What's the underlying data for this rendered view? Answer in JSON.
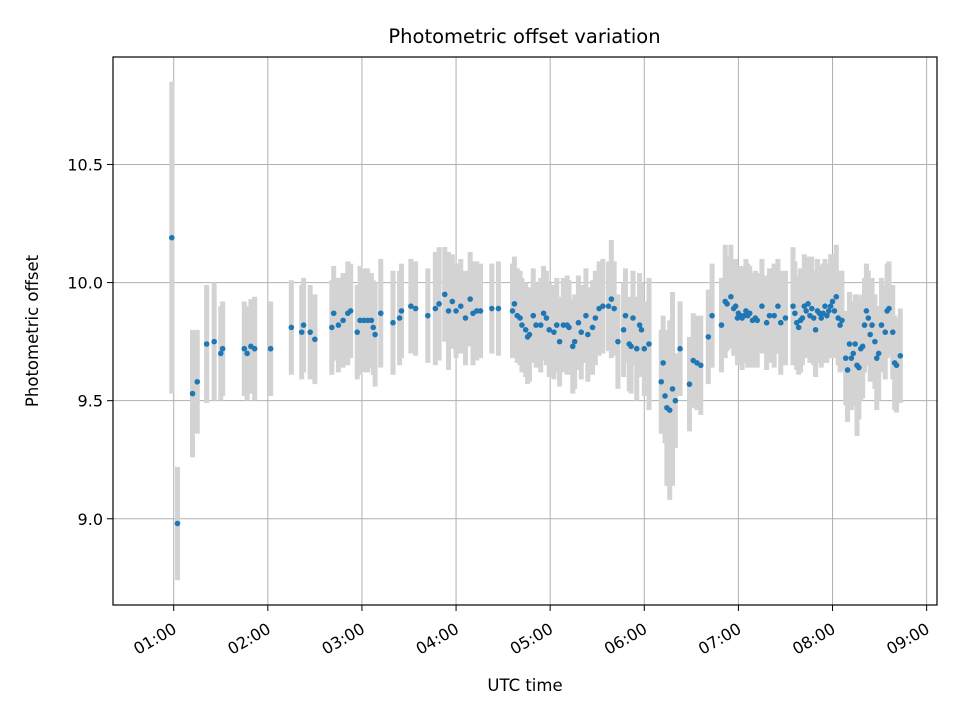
{
  "chart_data": {
    "type": "scatter",
    "title": "Photometric offset variation",
    "xlabel": "UTC time",
    "ylabel": "Photometric offset",
    "grid": true,
    "error_bars": true,
    "colors": {
      "points": "#1f77b4",
      "errorbars": "#d3d3d3",
      "grid": "#b0b0b0"
    },
    "xlim_hours": [
      0.355,
      9.11
    ],
    "ylim": [
      8.635,
      10.955
    ],
    "x_ticks": [
      {
        "value": 1,
        "label": "01:00"
      },
      {
        "value": 2,
        "label": "02:00"
      },
      {
        "value": 3,
        "label": "03:00"
      },
      {
        "value": 4,
        "label": "04:00"
      },
      {
        "value": 5,
        "label": "05:00"
      },
      {
        "value": 6,
        "label": "06:00"
      },
      {
        "value": 7,
        "label": "07:00"
      },
      {
        "value": 8,
        "label": "08:00"
      },
      {
        "value": 9,
        "label": "09:00"
      }
    ],
    "y_ticks": [
      {
        "value": 9.0,
        "label": "9.0"
      },
      {
        "value": 9.5,
        "label": "9.5"
      },
      {
        "value": 10.0,
        "label": "10.0"
      },
      {
        "value": 10.5,
        "label": "10.5"
      }
    ],
    "points": [
      [
        0.98,
        10.19,
        0.66
      ],
      [
        1.04,
        8.98,
        0.24
      ],
      [
        1.2,
        9.53,
        0.27
      ],
      [
        1.25,
        9.58,
        0.22
      ],
      [
        1.35,
        9.74,
        0.25
      ],
      [
        1.43,
        9.75,
        0.25
      ],
      [
        1.5,
        9.7,
        0.2
      ],
      [
        1.52,
        9.72,
        0.2
      ],
      [
        1.75,
        9.72,
        0.2
      ],
      [
        1.78,
        9.7,
        0.2
      ],
      [
        1.82,
        9.73,
        0.2
      ],
      [
        1.86,
        9.72,
        0.22
      ],
      [
        2.03,
        9.72,
        0.2
      ],
      [
        2.25,
        9.81,
        0.2
      ],
      [
        2.36,
        9.79,
        0.2
      ],
      [
        2.38,
        9.82,
        0.2
      ],
      [
        2.45,
        9.79,
        0.2
      ],
      [
        2.5,
        9.76,
        0.19
      ],
      [
        2.68,
        9.81,
        0.2
      ],
      [
        2.7,
        9.87,
        0.2
      ],
      [
        2.75,
        9.82,
        0.2
      ],
      [
        2.8,
        9.84,
        0.2
      ],
      [
        2.85,
        9.87,
        0.22
      ],
      [
        2.88,
        9.88,
        0.2
      ],
      [
        2.95,
        9.79,
        0.2
      ],
      [
        2.98,
        9.84,
        0.23
      ],
      [
        3.02,
        9.84,
        0.22
      ],
      [
        3.06,
        9.84,
        0.22
      ],
      [
        3.1,
        9.84,
        0.2
      ],
      [
        3.12,
        9.81,
        0.2
      ],
      [
        3.14,
        9.78,
        0.22
      ],
      [
        3.2,
        9.87,
        0.23
      ],
      [
        3.33,
        9.83,
        0.22
      ],
      [
        3.4,
        9.85,
        0.2
      ],
      [
        3.42,
        9.88,
        0.2
      ],
      [
        3.52,
        9.9,
        0.2
      ],
      [
        3.57,
        9.89,
        0.2
      ],
      [
        3.7,
        9.86,
        0.2
      ],
      [
        3.78,
        9.89,
        0.24
      ],
      [
        3.82,
        9.91,
        0.24
      ],
      [
        3.88,
        9.95,
        0.2
      ],
      [
        3.92,
        9.88,
        0.25
      ],
      [
        3.96,
        9.92,
        0.2
      ],
      [
        4.0,
        9.88,
        0.2
      ],
      [
        4.05,
        9.9,
        0.2
      ],
      [
        4.1,
        9.85,
        0.2
      ],
      [
        4.15,
        9.93,
        0.2
      ],
      [
        4.18,
        9.87,
        0.22
      ],
      [
        4.22,
        9.88,
        0.21
      ],
      [
        4.26,
        9.88,
        0.2
      ],
      [
        4.38,
        9.89,
        0.19
      ],
      [
        4.45,
        9.89,
        0.2
      ],
      [
        4.6,
        9.88,
        0.2
      ],
      [
        4.62,
        9.91,
        0.2
      ],
      [
        4.65,
        9.86,
        0.2
      ],
      [
        4.68,
        9.85,
        0.2
      ],
      [
        4.7,
        9.82,
        0.2
      ],
      [
        4.74,
        9.8,
        0.2
      ],
      [
        4.76,
        9.77,
        0.2
      ],
      [
        4.78,
        9.78,
        0.2
      ],
      [
        4.82,
        9.86,
        0.2
      ],
      [
        4.85,
        9.82,
        0.18
      ],
      [
        4.9,
        9.82,
        0.2
      ],
      [
        4.93,
        9.87,
        0.2
      ],
      [
        4.96,
        9.85,
        0.2
      ],
      [
        4.99,
        9.8,
        0.2
      ],
      [
        5.04,
        9.79,
        0.2
      ],
      [
        5.07,
        9.82,
        0.2
      ],
      [
        5.1,
        9.75,
        0.19
      ],
      [
        5.14,
        9.82,
        0.2
      ],
      [
        5.18,
        9.82,
        0.21
      ],
      [
        5.2,
        9.81,
        0.2
      ],
      [
        5.24,
        9.73,
        0.2
      ],
      [
        5.26,
        9.75,
        0.2
      ],
      [
        5.3,
        9.83,
        0.2
      ],
      [
        5.33,
        9.79,
        0.2
      ],
      [
        5.38,
        9.86,
        0.2
      ],
      [
        5.4,
        9.78,
        0.2
      ],
      [
        5.45,
        9.81,
        0.2
      ],
      [
        5.48,
        9.85,
        0.2
      ],
      [
        5.52,
        9.89,
        0.2
      ],
      [
        5.56,
        9.9,
        0.2
      ],
      [
        5.62,
        9.9,
        0.19
      ],
      [
        5.65,
        9.93,
        0.25
      ],
      [
        5.68,
        9.89,
        0.2
      ],
      [
        5.72,
        9.75,
        0.2
      ],
      [
        5.78,
        9.8,
        0.2
      ],
      [
        5.8,
        9.86,
        0.2
      ],
      [
        5.84,
        9.74,
        0.2
      ],
      [
        5.86,
        9.73,
        0.2
      ],
      [
        5.88,
        9.85,
        0.2
      ],
      [
        5.92,
        9.72,
        0.22
      ],
      [
        5.95,
        9.82,
        0.22
      ],
      [
        5.97,
        9.8,
        0.2
      ],
      [
        6.0,
        9.72,
        0.2
      ],
      [
        6.05,
        9.74,
        0.28
      ],
      [
        6.18,
        9.58,
        0.22
      ],
      [
        6.2,
        9.66,
        0.2
      ],
      [
        6.22,
        9.52,
        0.2
      ],
      [
        6.24,
        9.47,
        0.33
      ],
      [
        6.27,
        9.46,
        0.38
      ],
      [
        6.3,
        9.55,
        0.41
      ],
      [
        6.33,
        9.5,
        0.2
      ],
      [
        6.38,
        9.72,
        0.2
      ],
      [
        6.48,
        9.57,
        0.2
      ],
      [
        6.52,
        9.67,
        0.2
      ],
      [
        6.56,
        9.66,
        0.2
      ],
      [
        6.6,
        9.65,
        0.21
      ],
      [
        6.68,
        9.77,
        0.2
      ],
      [
        6.72,
        9.86,
        0.22
      ],
      [
        6.82,
        9.82,
        0.2
      ],
      [
        6.86,
        9.92,
        0.24
      ],
      [
        6.88,
        9.91,
        0.2
      ],
      [
        6.92,
        9.94,
        0.22
      ],
      [
        6.95,
        9.89,
        0.2
      ],
      [
        6.97,
        9.9,
        0.2
      ],
      [
        6.99,
        9.85,
        0.2
      ],
      [
        7.0,
        9.87,
        0.2
      ],
      [
        7.02,
        9.86,
        0.21
      ],
      [
        7.04,
        9.85,
        0.22
      ],
      [
        7.06,
        9.86,
        0.2
      ],
      [
        7.08,
        9.88,
        0.22
      ],
      [
        7.1,
        9.86,
        0.22
      ],
      [
        7.12,
        9.87,
        0.2
      ],
      [
        7.15,
        9.84,
        0.2
      ],
      [
        7.18,
        9.85,
        0.2
      ],
      [
        7.2,
        9.84,
        0.2
      ],
      [
        7.25,
        9.9,
        0.2
      ],
      [
        7.3,
        9.83,
        0.2
      ],
      [
        7.33,
        9.86,
        0.2
      ],
      [
        7.38,
        9.86,
        0.22
      ],
      [
        7.42,
        9.9,
        0.2
      ],
      [
        7.45,
        9.83,
        0.22
      ],
      [
        7.5,
        9.85,
        0.2
      ],
      [
        7.58,
        9.9,
        0.25
      ],
      [
        7.6,
        9.87,
        0.22
      ],
      [
        7.62,
        9.83,
        0.2
      ],
      [
        7.64,
        9.81,
        0.2
      ],
      [
        7.66,
        9.84,
        0.22
      ],
      [
        7.68,
        9.85,
        0.2
      ],
      [
        7.7,
        9.9,
        0.22
      ],
      [
        7.72,
        9.88,
        0.2
      ],
      [
        7.74,
        9.91,
        0.2
      ],
      [
        7.76,
        9.86,
        0.2
      ],
      [
        7.78,
        9.89,
        0.22
      ],
      [
        7.8,
        9.85,
        0.2
      ],
      [
        7.82,
        9.8,
        0.2
      ],
      [
        7.84,
        9.88,
        0.22
      ],
      [
        7.86,
        9.87,
        0.2
      ],
      [
        7.88,
        9.85,
        0.21
      ],
      [
        7.9,
        9.87,
        0.21
      ],
      [
        7.92,
        9.9,
        0.2
      ],
      [
        7.94,
        9.86,
        0.2
      ],
      [
        7.96,
        9.88,
        0.2
      ],
      [
        7.98,
        9.9,
        0.22
      ],
      [
        8.0,
        9.92,
        0.2
      ],
      [
        8.02,
        9.88,
        0.2
      ],
      [
        8.04,
        9.94,
        0.22
      ],
      [
        8.06,
        9.85,
        0.2
      ],
      [
        8.08,
        9.82,
        0.2
      ],
      [
        8.1,
        9.84,
        0.21
      ],
      [
        8.14,
        9.68,
        0.2
      ],
      [
        8.16,
        9.63,
        0.22
      ],
      [
        8.18,
        9.74,
        0.22
      ],
      [
        8.2,
        9.68,
        0.22
      ],
      [
        8.22,
        9.7,
        0.22
      ],
      [
        8.24,
        9.74,
        0.21
      ],
      [
        8.26,
        9.65,
        0.3
      ],
      [
        8.28,
        9.64,
        0.22
      ],
      [
        8.3,
        9.72,
        0.22
      ],
      [
        8.32,
        9.73,
        0.22
      ],
      [
        8.34,
        9.82,
        0.2
      ],
      [
        8.36,
        9.88,
        0.2
      ],
      [
        8.38,
        9.85,
        0.2
      ],
      [
        8.4,
        9.78,
        0.2
      ],
      [
        8.42,
        9.82,
        0.2
      ],
      [
        8.45,
        9.75,
        0.2
      ],
      [
        8.47,
        9.68,
        0.22
      ],
      [
        8.49,
        9.7,
        0.2
      ],
      [
        8.52,
        9.82,
        0.2
      ],
      [
        8.56,
        9.79,
        0.2
      ],
      [
        8.58,
        9.88,
        0.2
      ],
      [
        8.6,
        9.89,
        0.2
      ],
      [
        8.64,
        9.79,
        0.2
      ],
      [
        8.66,
        9.66,
        0.2
      ],
      [
        8.68,
        9.65,
        0.2
      ],
      [
        8.72,
        9.69,
        0.2
      ]
    ]
  }
}
